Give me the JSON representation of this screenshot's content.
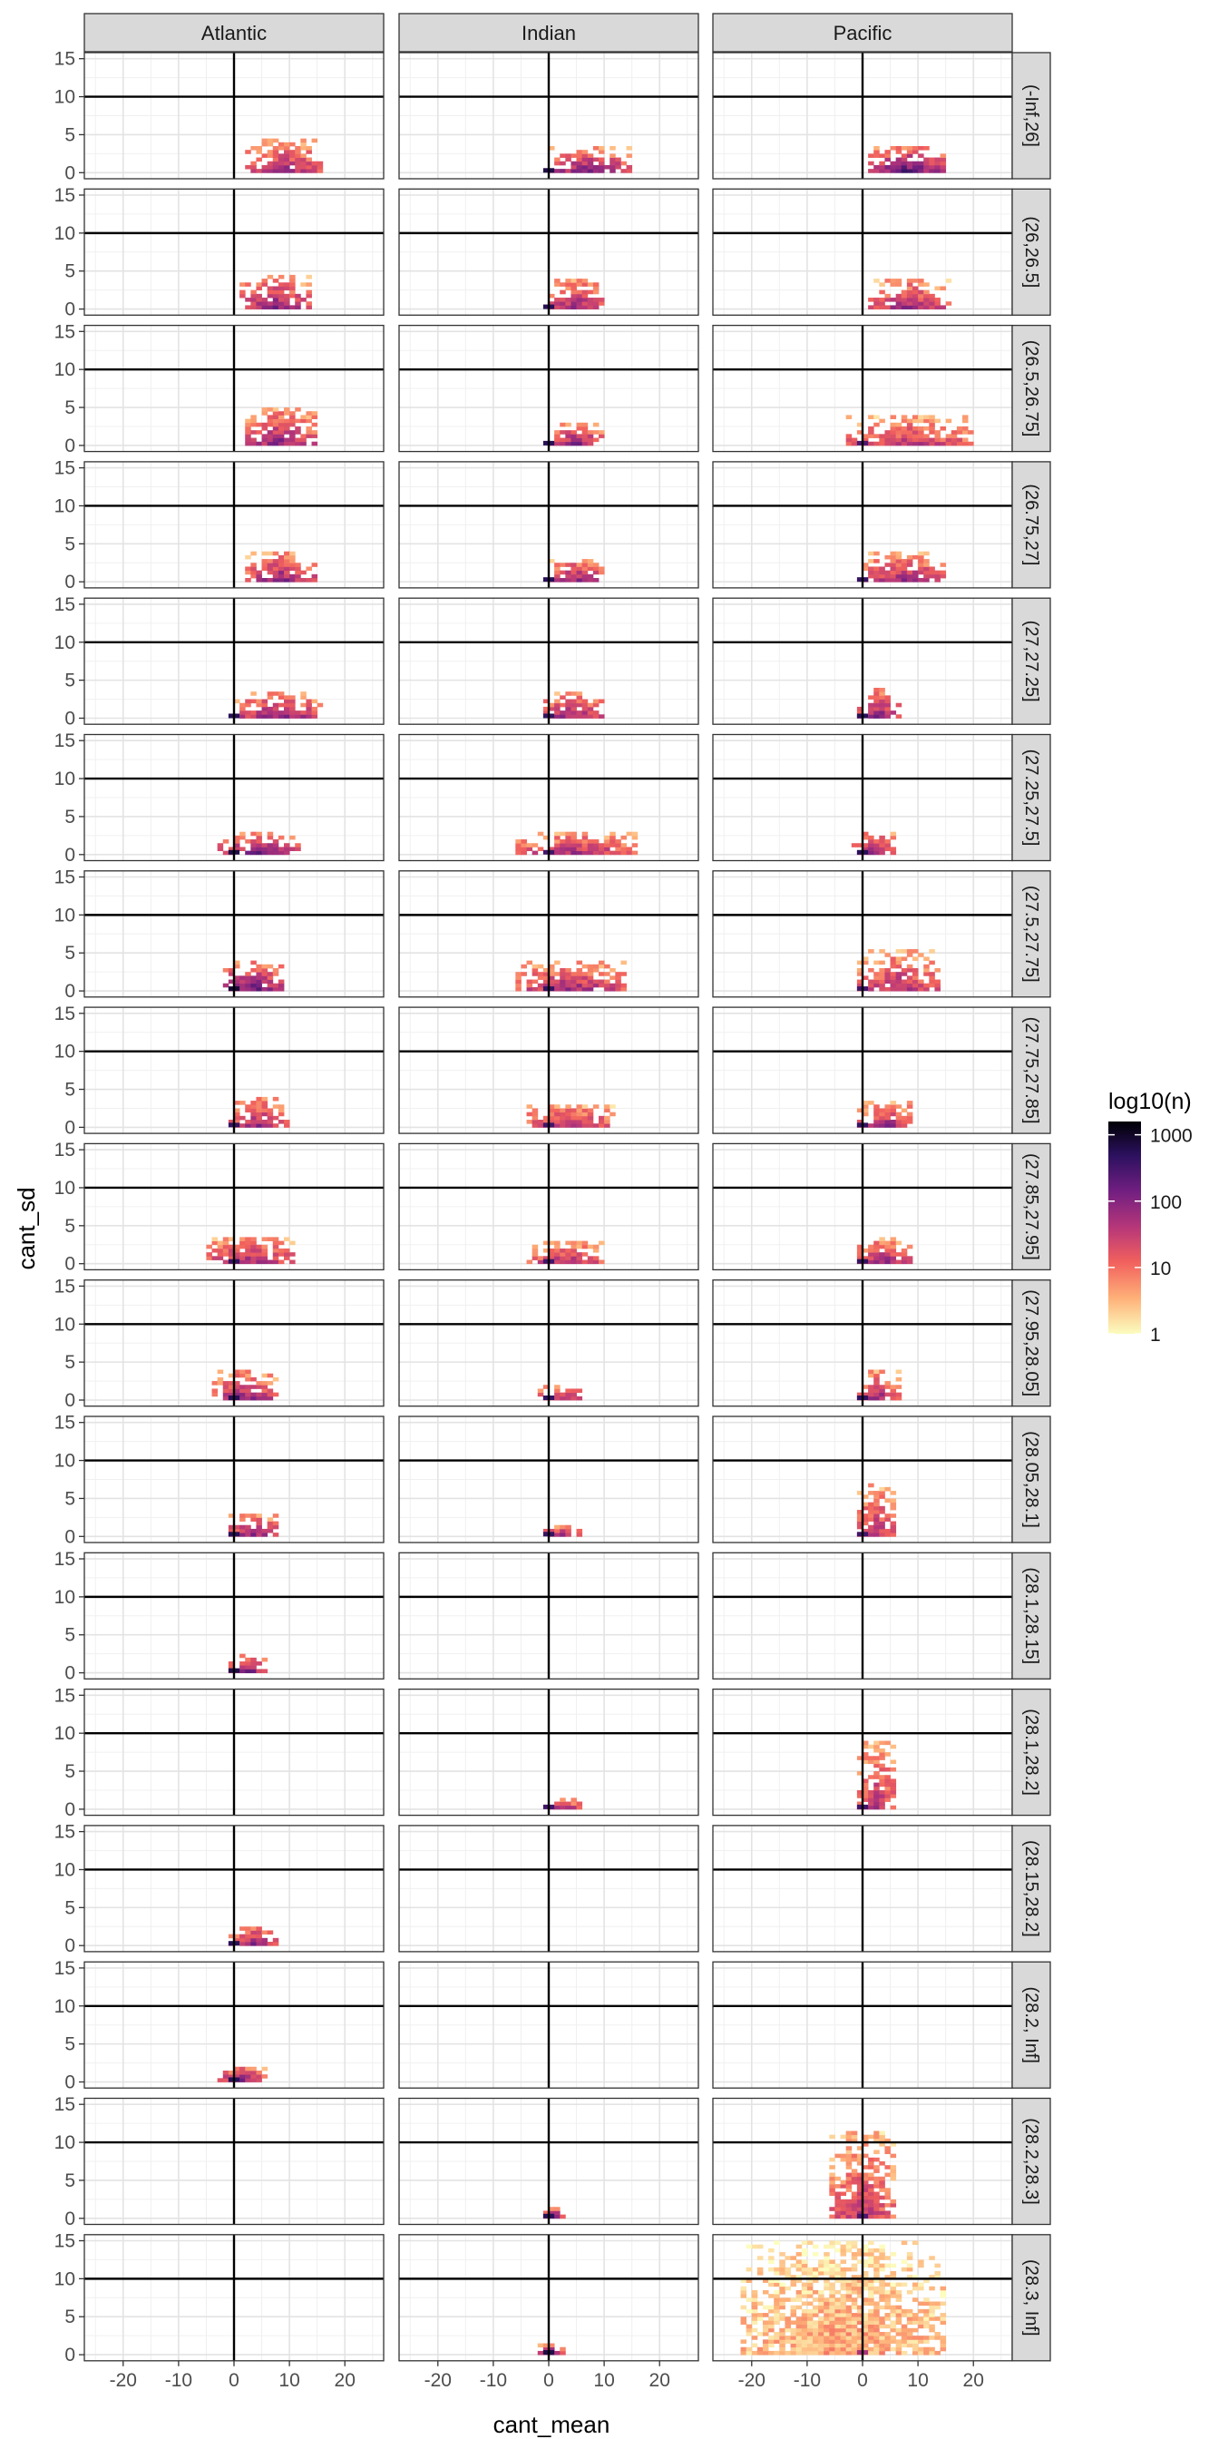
{
  "chart_data": {
    "type": "heatmap",
    "title": "",
    "xlabel": "cant_mean",
    "ylabel": "cant_sd",
    "xlim": [
      -27,
      27
    ],
    "ylim": [
      -0.8,
      15.8
    ],
    "x_ticks": [
      -20,
      -10,
      0,
      10,
      20
    ],
    "y_ticks": [
      0,
      5,
      10,
      15
    ],
    "x_tick_labels": [
      "-20",
      "-10",
      "0",
      "10",
      "20"
    ],
    "y_tick_labels": [
      "0",
      "5",
      "10",
      "15"
    ],
    "reference_lines": {
      "x": 0,
      "y": 10
    },
    "basins": [
      "Atlantic",
      "Indian",
      "Pacific"
    ],
    "density_bins": [
      "(-Inf,26]",
      "(26,26.5]",
      "(26.5,26.75]",
      "(26.75,27]",
      "(27,27.25]",
      "(27.25,27.5]",
      "(27.5,27.75]",
      "(27.75,27.85]",
      "(27.85,27.95]",
      "(27.95,28.05]",
      "(28.05,28.1]",
      "(28.1,28.15]",
      "(28.1,28.2]",
      "(28.15,28.2]",
      "(28.2, Inf]",
      "(28.2,28.3]",
      "(28.3, Inf]"
    ],
    "legend": {
      "title": "log10(n)",
      "position": "right",
      "breaks": [
        1,
        10,
        100,
        1000
      ],
      "break_labels": [
        "1",
        "10",
        "100",
        "1000"
      ],
      "colors": [
        "#fcfdbf",
        "#feb078",
        "#f1605d",
        "#b73779",
        "#721f81",
        "#2c115f",
        "#000004"
      ]
    },
    "cells": [
      {
        "row": 0,
        "col": 0,
        "x": [
          2,
          16
        ],
        "y": [
          0,
          4.5
        ],
        "level": 1.4
      },
      {
        "row": 0,
        "col": 1,
        "x": [
          0,
          15
        ],
        "y": [
          0,
          3.5
        ],
        "level": 1.6
      },
      {
        "row": 0,
        "col": 2,
        "x": [
          1,
          15
        ],
        "y": [
          0,
          3.5
        ],
        "level": 1.8
      },
      {
        "row": 1,
        "col": 0,
        "x": [
          1,
          14
        ],
        "y": [
          0,
          4.5
        ],
        "level": 1.5
      },
      {
        "row": 1,
        "col": 1,
        "x": [
          0,
          10
        ],
        "y": [
          0,
          4
        ],
        "level": 1.5
      },
      {
        "row": 1,
        "col": 2,
        "x": [
          1,
          16
        ],
        "y": [
          0,
          4
        ],
        "level": 1.4
      },
      {
        "row": 2,
        "col": 0,
        "x": [
          2,
          15
        ],
        "y": [
          0,
          5
        ],
        "level": 1.5
      },
      {
        "row": 2,
        "col": 1,
        "x": [
          0,
          10
        ],
        "y": [
          0,
          3
        ],
        "level": 1.5
      },
      {
        "row": 2,
        "col": 2,
        "x": [
          -3,
          20
        ],
        "y": [
          0,
          4
        ],
        "level": 1.2
      },
      {
        "row": 3,
        "col": 0,
        "x": [
          2,
          15
        ],
        "y": [
          0,
          4
        ],
        "level": 1.5
      },
      {
        "row": 3,
        "col": 1,
        "x": [
          0,
          10
        ],
        "y": [
          0,
          3
        ],
        "level": 1.5
      },
      {
        "row": 3,
        "col": 2,
        "x": [
          0,
          15
        ],
        "y": [
          0,
          4
        ],
        "level": 1.4
      },
      {
        "row": 4,
        "col": 0,
        "x": [
          0,
          16
        ],
        "y": [
          0,
          3.5
        ],
        "level": 1.5
      },
      {
        "row": 4,
        "col": 1,
        "x": [
          -2,
          10
        ],
        "y": [
          0,
          3.5
        ],
        "level": 1.4
      },
      {
        "row": 4,
        "col": 2,
        "x": [
          -1,
          7
        ],
        "y": [
          0,
          4
        ],
        "level": 1.5
      },
      {
        "row": 5,
        "col": 0,
        "x": [
          -3,
          12
        ],
        "y": [
          0,
          3
        ],
        "level": 1.6
      },
      {
        "row": 5,
        "col": 1,
        "x": [
          -6,
          16
        ],
        "y": [
          0,
          3
        ],
        "level": 1.3
      },
      {
        "row": 5,
        "col": 2,
        "x": [
          -2,
          6
        ],
        "y": [
          0,
          3
        ],
        "level": 1.5
      },
      {
        "row": 6,
        "col": 0,
        "x": [
          -2,
          9
        ],
        "y": [
          0,
          4
        ],
        "level": 1.7
      },
      {
        "row": 6,
        "col": 1,
        "x": [
          -6,
          14
        ],
        "y": [
          0,
          4
        ],
        "level": 1.4
      },
      {
        "row": 6,
        "col": 2,
        "x": [
          -1,
          14
        ],
        "y": [
          0,
          5.5
        ],
        "level": 1.3
      },
      {
        "row": 7,
        "col": 0,
        "x": [
          -1,
          10
        ],
        "y": [
          0,
          4
        ],
        "level": 1.4
      },
      {
        "row": 7,
        "col": 1,
        "x": [
          -4,
          12
        ],
        "y": [
          0,
          3
        ],
        "level": 1.3
      },
      {
        "row": 7,
        "col": 2,
        "x": [
          -1,
          10
        ],
        "y": [
          0,
          3.5
        ],
        "level": 1.4
      },
      {
        "row": 8,
        "col": 0,
        "x": [
          -5,
          11
        ],
        "y": [
          0,
          3.5
        ],
        "level": 1.4
      },
      {
        "row": 8,
        "col": 1,
        "x": [
          -4,
          10
        ],
        "y": [
          0,
          3
        ],
        "level": 1.3
      },
      {
        "row": 8,
        "col": 2,
        "x": [
          -1,
          9
        ],
        "y": [
          0,
          3.5
        ],
        "level": 1.4
      },
      {
        "row": 9,
        "col": 0,
        "x": [
          -4,
          8
        ],
        "y": [
          0,
          4
        ],
        "level": 1.5
      },
      {
        "row": 9,
        "col": 1,
        "x": [
          -2,
          7
        ],
        "y": [
          0,
          2
        ],
        "level": 1.4
      },
      {
        "row": 9,
        "col": 2,
        "x": [
          -1,
          7
        ],
        "y": [
          0,
          4
        ],
        "level": 1.4
      },
      {
        "row": 10,
        "col": 0,
        "x": [
          -1,
          8
        ],
        "y": [
          0,
          3
        ],
        "level": 1.5
      },
      {
        "row": 10,
        "col": 1,
        "x": [
          -1,
          6
        ],
        "y": [
          0,
          1.5
        ],
        "level": 1.4
      },
      {
        "row": 10,
        "col": 2,
        "x": [
          -1,
          6
        ],
        "y": [
          0,
          7
        ],
        "level": 1.3
      },
      {
        "row": 11,
        "col": 0,
        "x": [
          -1,
          6
        ],
        "y": [
          0,
          2.5
        ],
        "level": 1.6
      },
      {
        "row": 12,
        "col": 1,
        "x": [
          -1,
          6
        ],
        "y": [
          0,
          1.5
        ],
        "level": 1.3
      },
      {
        "row": 12,
        "col": 2,
        "x": [
          -1,
          6
        ],
        "y": [
          0,
          9
        ],
        "level": 1.3
      },
      {
        "row": 13,
        "col": 0,
        "x": [
          -1,
          8
        ],
        "y": [
          0,
          2.5
        ],
        "level": 1.5
      },
      {
        "row": 14,
        "col": 0,
        "x": [
          -3,
          6
        ],
        "y": [
          0,
          2
        ],
        "level": 1.5
      },
      {
        "row": 15,
        "col": 1,
        "x": [
          -1,
          3
        ],
        "y": [
          0,
          1.5
        ],
        "level": 1.5
      },
      {
        "row": 15,
        "col": 2,
        "x": [
          -6,
          6
        ],
        "y": [
          0,
          11.5
        ],
        "level": 1.2
      },
      {
        "row": 16,
        "col": 1,
        "x": [
          -2,
          3
        ],
        "y": [
          0,
          1.5
        ],
        "level": 1.6
      },
      {
        "row": 16,
        "col": 2,
        "x": [
          -22,
          15
        ],
        "y": [
          0,
          15
        ],
        "level": 0.5
      }
    ]
  }
}
